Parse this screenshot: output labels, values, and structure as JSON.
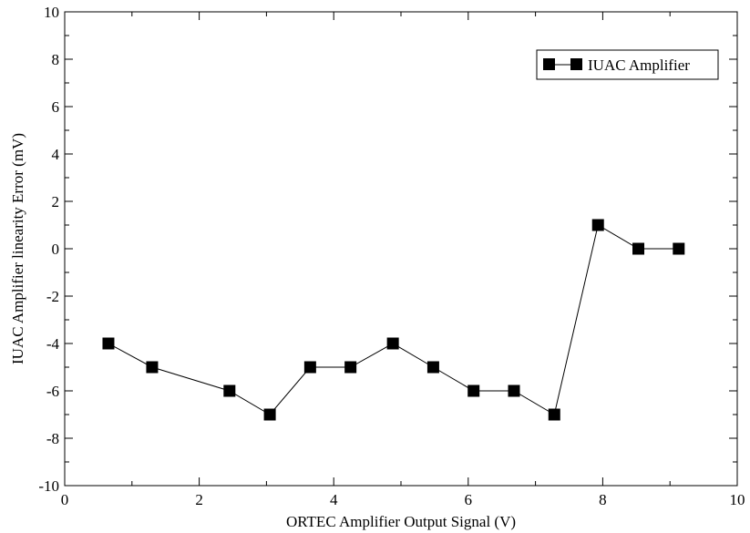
{
  "chart_data": {
    "type": "line",
    "title": "",
    "xlabel": "ORTEC Amplifier Output Signal (V)",
    "ylabel": "IUAC Amplifier linearity Error (mV)",
    "xlim": [
      0,
      10
    ],
    "ylim": [
      -10,
      10
    ],
    "x_major_ticks": [
      0,
      2,
      4,
      6,
      8,
      10
    ],
    "x_tick_labels": [
      "0",
      "2",
      "4",
      "6",
      "8",
      "10"
    ],
    "y_major_ticks": [
      -10,
      -8,
      -6,
      -4,
      -2,
      0,
      2,
      4,
      6,
      8,
      10
    ],
    "y_tick_labels": [
      "-10",
      "-8",
      "-6",
      "-4",
      "-2",
      "0",
      "2",
      "4",
      "6",
      "8",
      "10"
    ],
    "grid": false,
    "legend_position": "top-right",
    "marker": "square",
    "series": [
      {
        "name": "IUAC Amplifier",
        "color": "#000000",
        "x": [
          0.65,
          1.3,
          2.45,
          3.05,
          3.65,
          4.25,
          4.88,
          5.48,
          6.08,
          6.68,
          7.28,
          7.93,
          8.53,
          9.13
        ],
        "y": [
          -4,
          -5,
          -6,
          -7,
          -5,
          -5,
          -4,
          -5,
          -6,
          -6,
          -7,
          1,
          0,
          0
        ]
      }
    ]
  }
}
